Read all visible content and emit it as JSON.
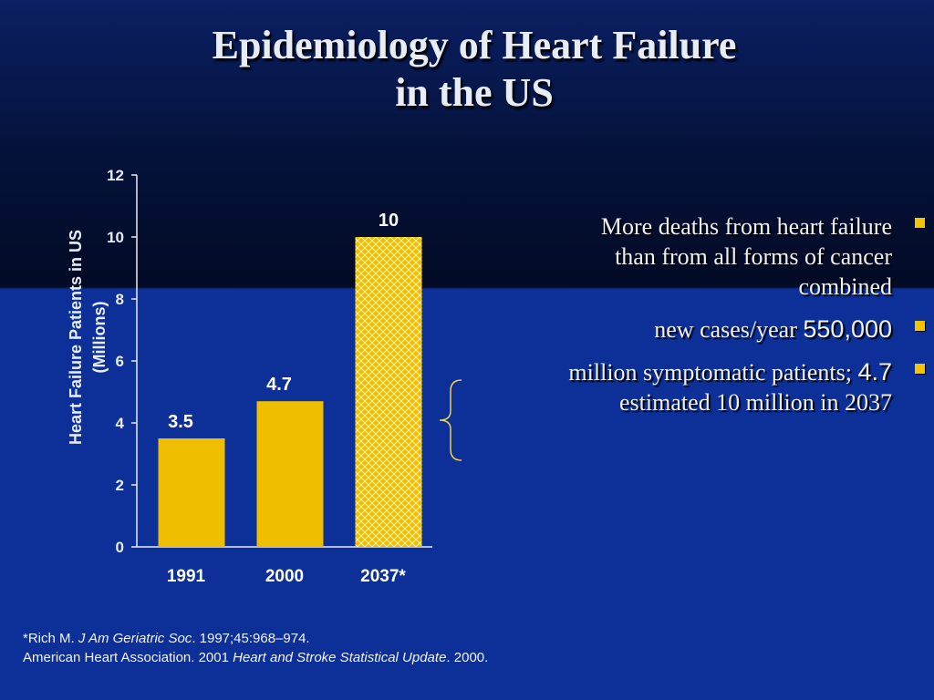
{
  "title": {
    "line1": "Epidemiology of Heart Failure",
    "line2": "in the US"
  },
  "colors": {
    "bar": "#f0be00",
    "bar_hatch": "#f5d44a",
    "axis": "#e8ecf5",
    "bullet_marker": "#f4c400"
  },
  "chart_data": {
    "type": "bar",
    "categories": [
      "1991",
      "2000",
      "2037*"
    ],
    "values": [
      3.5,
      4.7,
      10
    ],
    "value_labels": [
      "3.5",
      "4.7",
      "10"
    ],
    "projected": [
      false,
      false,
      true
    ],
    "ylabel_line1": "Heart Failure Patients in US",
    "ylabel_line2": "(Millions)",
    "ylim": [
      0,
      12
    ],
    "yticks": [
      0,
      2,
      4,
      6,
      8,
      10,
      12
    ],
    "grid": false
  },
  "bullets": [
    {
      "text_lines": [
        "More deaths from heart failure",
        "than from all forms of cancer",
        "combined"
      ]
    },
    {
      "text": "new cases/year",
      "number": "550,000"
    },
    {
      "text": "million symptomatic patients;",
      "number": "4.7",
      "second_line": "estimated 10 million in 2037"
    }
  ],
  "footnote": {
    "line1_author": "*Rich M. ",
    "line1_journal": "J Am Geriatric Soc",
    "line1_rest": ". 1997;45:968–974.",
    "line2_start": "American Heart Association. 2001 ",
    "line2_title": "Heart and Stroke Statistical Update",
    "line2_end": ". 2000."
  }
}
